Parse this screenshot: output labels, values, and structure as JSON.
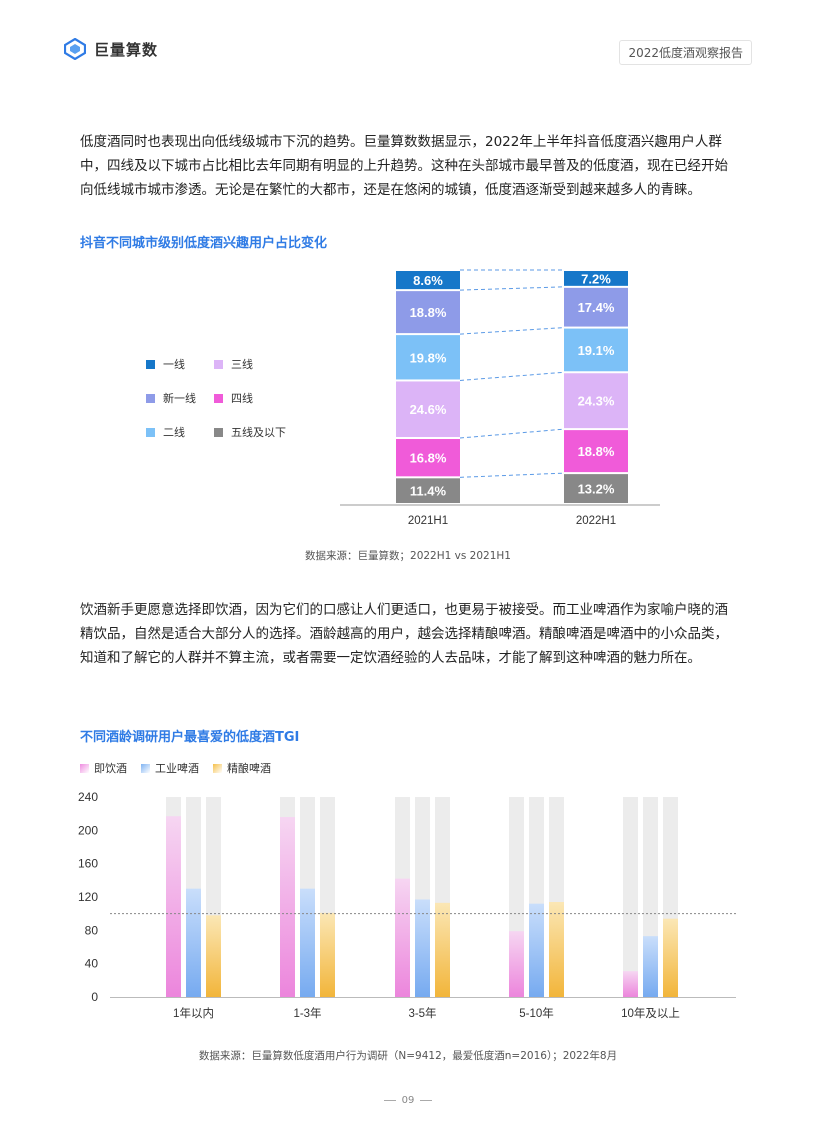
{
  "header": {
    "logo_text": "巨量算数",
    "report_title": "2022低度酒观察报告",
    "logo_color": "#2f7be5"
  },
  "paragraph1": "低度酒同时也表现出向低线级城市下沉的趋势。巨量算数数据显示，2022年上半年抖音低度酒兴趣用户人群中，四线及以下城市占比相比去年同期有明显的上升趋势。这种在头部城市最早普及的低度酒，现在已经开始向低线城市城市渗透。无论是在繁忙的大都市，还是在悠闲的城镇，低度酒逐渐受到越来越多人的青睐。",
  "chart1": {
    "title": "抖音不同城市级别低度酒兴趣用户占比变化",
    "source": "数据来源：巨量算数；2022H1 vs 2021H1",
    "legend": [
      {
        "name": "一线",
        "color": "#1677c9"
      },
      {
        "name": "三线",
        "color": "#dcb4f7"
      },
      {
        "name": "新一线",
        "color": "#8e9be8"
      },
      {
        "name": "四线",
        "color": "#f05bd9"
      },
      {
        "name": "二线",
        "color": "#7cc1f7"
      },
      {
        "name": "五线及以下",
        "color": "#888888"
      }
    ]
  },
  "paragraph2": "饮酒新手更愿意选择即饮酒，因为它们的口感让人们更适口，也更易于被接受。而工业啤酒作为家喻户晓的酒精饮品，自然是适合大部分人的选择。酒龄越高的用户，越会选择精酿啤酒。精酿啤酒是啤酒中的小众品类，知道和了解它的人群并不算主流，或者需要一定饮酒经验的人去品味，才能了解到这种啤酒的魅力所在。",
  "chart2": {
    "title": "不同酒龄调研用户最喜爱的低度酒TGI",
    "source": "数据来源：巨量算数低度酒用户行为调研（N=9412，最爱低度酒n=2016）；2022年8月",
    "legend": [
      {
        "name": "即饮酒",
        "color": "#ee8ce0"
      },
      {
        "name": "工业啤酒",
        "color": "#7fb3f2"
      },
      {
        "name": "精酿啤酒",
        "color": "#f5c04a"
      }
    ]
  },
  "page_number": "09",
  "chart_data": [
    {
      "type": "bar",
      "stacked": true,
      "percent": true,
      "categories": [
        "2021H1",
        "2022H1"
      ],
      "series": [
        {
          "name": "五线及以下",
          "values": [
            11.4,
            13.2
          ],
          "color": "#888888"
        },
        {
          "name": "四线",
          "values": [
            16.8,
            18.8
          ],
          "color": "#f05bd9"
        },
        {
          "name": "三线",
          "values": [
            24.6,
            24.3
          ],
          "color": "#dcb4f7"
        },
        {
          "name": "二线",
          "values": [
            19.8,
            19.1
          ],
          "color": "#7cc1f7"
        },
        {
          "name": "新一线",
          "values": [
            18.8,
            17.4
          ],
          "color": "#8e9be8"
        },
        {
          "name": "一线",
          "values": [
            8.6,
            7.2
          ],
          "color": "#1677c9"
        }
      ],
      "value_labels": [
        [
          "11.4%",
          "13.2%"
        ],
        [
          "16.8%",
          "18.8%"
        ],
        [
          "24.6%",
          "24.3%"
        ],
        [
          "19.8%",
          "19.1%"
        ],
        [
          "18.8%",
          "17.4%"
        ],
        [
          "8.6%",
          "7.2%"
        ]
      ],
      "ylim": [
        0,
        100
      ],
      "legend_position": "left"
    },
    {
      "type": "bar",
      "categories": [
        "1年以内",
        "1-3年",
        "3-5年",
        "5-10年",
        "10年及以上"
      ],
      "series": [
        {
          "name": "即饮酒",
          "values": [
            217,
            216,
            142,
            79,
            31
          ]
        },
        {
          "name": "工业啤酒",
          "values": [
            130,
            130,
            117,
            112,
            73
          ]
        },
        {
          "name": "精酿啤酒",
          "values": [
            98,
            101,
            113,
            114,
            94
          ]
        }
      ],
      "yticks": [
        "0",
        "40",
        "80",
        "120",
        "160",
        "200",
        "240"
      ],
      "ylim": [
        0,
        240
      ],
      "reference_line": 100,
      "background_bar_max": 240,
      "legend_position": "top-left",
      "grid": false
    }
  ]
}
